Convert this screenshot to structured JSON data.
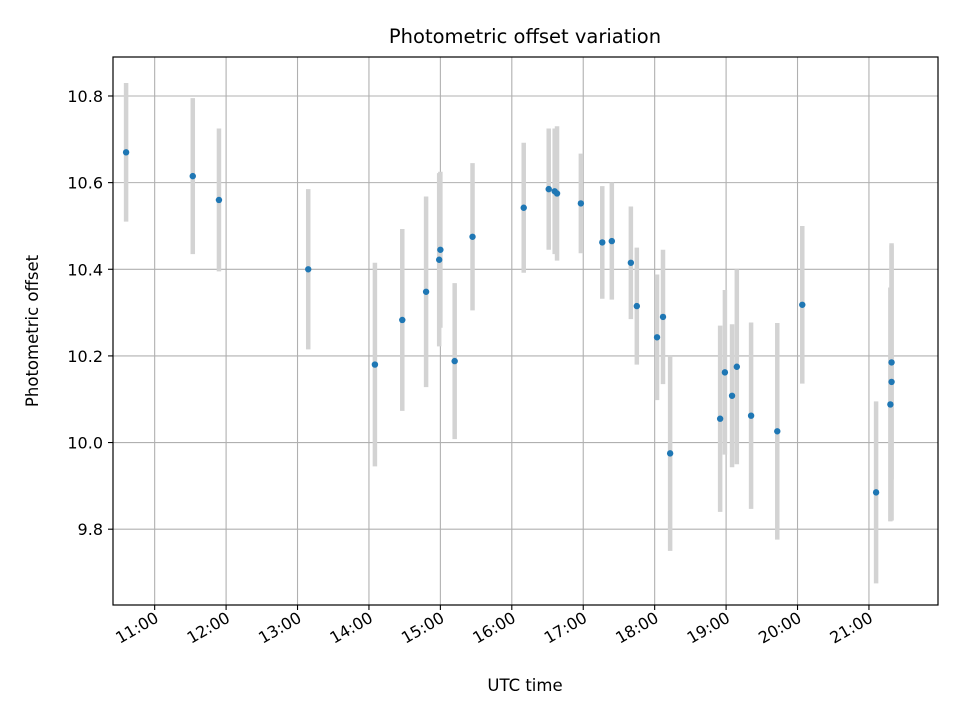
{
  "chart_data": {
    "type": "scatter",
    "title": "Photometric offset variation",
    "xlabel": "UTC time",
    "ylabel": "Photometric offset",
    "x_unit": "UTC time (HH:MM)",
    "xlim": [
      "10:25",
      "21:58"
    ],
    "ylim": [
      9.625,
      10.89
    ],
    "x_ticks": [
      "11:00",
      "12:00",
      "13:00",
      "14:00",
      "15:00",
      "16:00",
      "17:00",
      "18:00",
      "19:00",
      "20:00",
      "21:00"
    ],
    "y_ticks": [
      9.8,
      10.0,
      10.2,
      10.4,
      10.6,
      10.8
    ],
    "y_tick_labels": [
      "9.8",
      "10.0",
      "10.2",
      "10.4",
      "10.6",
      "10.8"
    ],
    "grid": true,
    "marker_color": "#1f77b4",
    "errorbar_color": "#d3d3d3",
    "series": [
      {
        "points": [
          {
            "x": "10:36",
            "y": 10.67,
            "err": 0.16
          },
          {
            "x": "11:32",
            "y": 10.615,
            "err": 0.18
          },
          {
            "x": "11:54",
            "y": 10.56,
            "err": 0.165
          },
          {
            "x": "13:09",
            "y": 10.4,
            "err": 0.185
          },
          {
            "x": "14:05",
            "y": 10.18,
            "err": 0.235
          },
          {
            "x": "14:28",
            "y": 10.283,
            "err": 0.21
          },
          {
            "x": "14:48",
            "y": 10.348,
            "err": 0.22
          },
          {
            "x": "14:59",
            "y": 10.422,
            "err": 0.2
          },
          {
            "x": "15:00",
            "y": 10.445,
            "err": 0.18
          },
          {
            "x": "15:12",
            "y": 10.188,
            "err": 0.18
          },
          {
            "x": "15:27",
            "y": 10.475,
            "err": 0.17
          },
          {
            "x": "16:10",
            "y": 10.542,
            "err": 0.15
          },
          {
            "x": "16:31",
            "y": 10.585,
            "err": 0.14
          },
          {
            "x": "16:36",
            "y": 10.58,
            "err": 0.145
          },
          {
            "x": "16:38",
            "y": 10.575,
            "err": 0.155
          },
          {
            "x": "16:58",
            "y": 10.552,
            "err": 0.115
          },
          {
            "x": "17:16",
            "y": 10.462,
            "err": 0.13
          },
          {
            "x": "17:24",
            "y": 10.465,
            "err": 0.135
          },
          {
            "x": "17:40",
            "y": 10.415,
            "err": 0.13
          },
          {
            "x": "17:45",
            "y": 10.315,
            "err": 0.135
          },
          {
            "x": "18:02",
            "y": 10.243,
            "err": 0.145
          },
          {
            "x": "18:07",
            "y": 10.29,
            "err": 0.155
          },
          {
            "x": "18:13",
            "y": 9.975,
            "err": 0.225
          },
          {
            "x": "18:55",
            "y": 10.055,
            "err": 0.215
          },
          {
            "x": "18:59",
            "y": 10.162,
            "err": 0.19
          },
          {
            "x": "19:05",
            "y": 10.108,
            "err": 0.165
          },
          {
            "x": "19:09",
            "y": 10.175,
            "err": 0.225
          },
          {
            "x": "19:21",
            "y": 10.062,
            "err": 0.215
          },
          {
            "x": "19:43",
            "y": 10.026,
            "err": 0.25
          },
          {
            "x": "20:04",
            "y": 10.318,
            "err": 0.182
          },
          {
            "x": "21:06",
            "y": 9.885,
            "err": 0.21
          },
          {
            "x": "21:18",
            "y": 10.088,
            "err": 0.27
          },
          {
            "x": "21:19",
            "y": 10.185,
            "err": 0.27
          },
          {
            "x": "21:19",
            "y": 10.14,
            "err": 0.32
          }
        ]
      }
    ]
  }
}
